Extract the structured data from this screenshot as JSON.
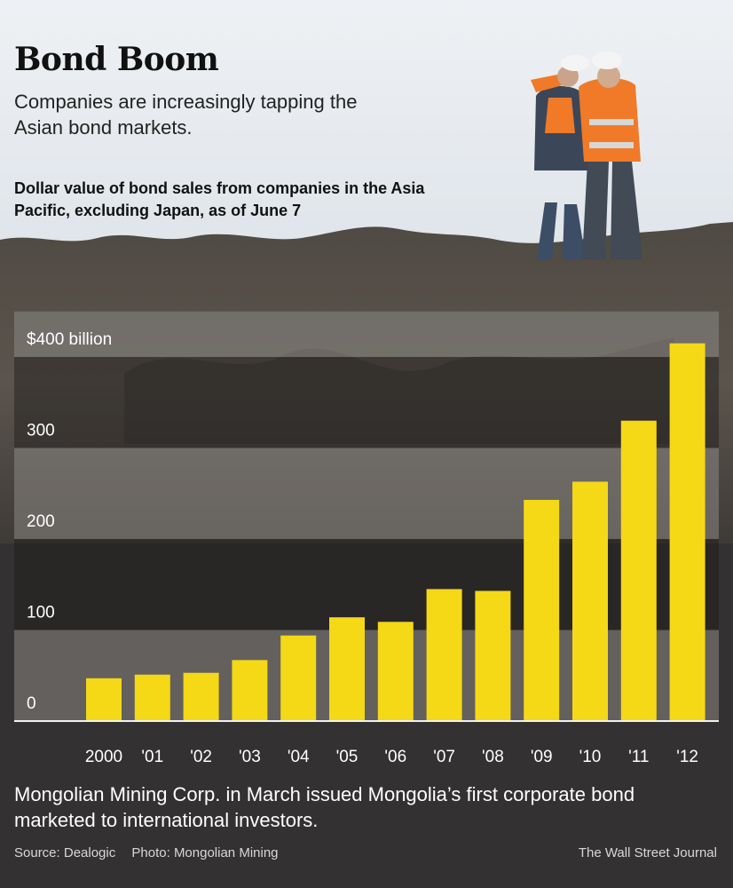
{
  "chart_data": {
    "type": "bar",
    "title": "Bond Boom",
    "subtitle": "Companies are increasingly tapping the Asian bond markets.",
    "description": "Dollar value of bond sales from companies in the Asia Pacific, excluding Japan, as of June 7",
    "categories": [
      "2000",
      "'01",
      "'02",
      "'03",
      "'04",
      "'05",
      "'06",
      "'07",
      "'08",
      "'09",
      "'10",
      "'11",
      "'12"
    ],
    "values": [
      47,
      51,
      53,
      67,
      94,
      114,
      109,
      145,
      143,
      243,
      263,
      330,
      415
    ],
    "ylim": [
      0,
      420
    ],
    "yticks": [
      0,
      100,
      200,
      300,
      400
    ],
    "ytick_labels": [
      "0",
      "100",
      "200",
      "300",
      "$400 billion"
    ],
    "xlabel": "",
    "ylabel": "",
    "grid": "alternating horizontal bands",
    "bar_color": "#f5d816"
  },
  "caption": "Mongolian Mining Corp. in March issued Mongolia’s first corporate bond marketed to international investors.",
  "footer": {
    "source": "Source: Dealogic",
    "photo": "Photo: Mongolian Mining",
    "publisher": "The Wall Street Journal"
  },
  "colors": {
    "sky": "#e9edf1",
    "ground": "#555049",
    "panel": "#333131",
    "band": "#6e6b68",
    "jacket": "#f07a28",
    "helmet": "#f4f4f4"
  }
}
